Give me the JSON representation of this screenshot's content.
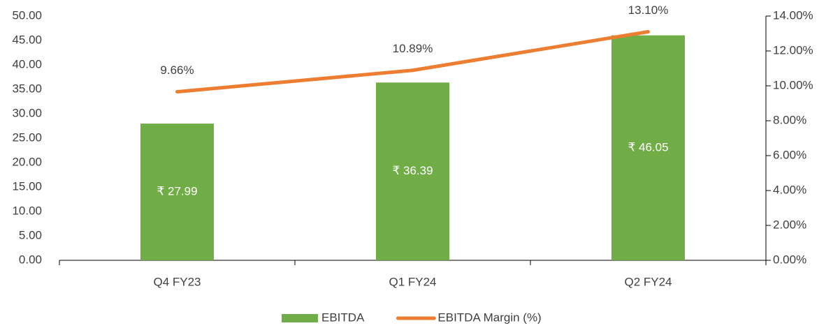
{
  "chart_data": {
    "type": "bar",
    "categories": [
      "Q4 FY23",
      "Q1 FY24",
      "Q2 FY24"
    ],
    "series": [
      {
        "name": "EBITDA",
        "type": "bar",
        "color": "#70ad47",
        "values": [
          27.99,
          36.39,
          46.05
        ],
        "value_labels": [
          "₹ 27.99",
          "₹ 36.39",
          "₹ 46.05"
        ]
      },
      {
        "name": "EBITDA Margin (%)",
        "type": "line",
        "axis": "y2",
        "color": "#ed7d31",
        "values": [
          9.66,
          10.89,
          13.1
        ],
        "value_labels": [
          "9.66%",
          "10.89%",
          "13.10%"
        ]
      }
    ],
    "ylim": [
      0,
      50
    ],
    "yticks": [
      {
        "value": 0,
        "label": "0.00"
      },
      {
        "value": 5,
        "label": "5.00"
      },
      {
        "value": 10,
        "label": "10.00"
      },
      {
        "value": 15,
        "label": "15.00"
      },
      {
        "value": 20,
        "label": "20.00"
      },
      {
        "value": 25,
        "label": "25.00"
      },
      {
        "value": 30,
        "label": "30.00"
      },
      {
        "value": 35,
        "label": "35.00"
      },
      {
        "value": 40,
        "label": "40.00"
      },
      {
        "value": 45,
        "label": "45.00"
      },
      {
        "value": 50,
        "label": "50.00"
      }
    ],
    "y2lim": [
      0,
      14
    ],
    "y2ticks": [
      {
        "value": 0,
        "label": "0.00%"
      },
      {
        "value": 2,
        "label": "2.00%"
      },
      {
        "value": 4,
        "label": "4.00%"
      },
      {
        "value": 6,
        "label": "6.00%"
      },
      {
        "value": 8,
        "label": "8.00%"
      },
      {
        "value": 10,
        "label": "10.00%"
      },
      {
        "value": 12,
        "label": "12.00%"
      },
      {
        "value": 14,
        "label": "14.00%"
      }
    ],
    "grid": false,
    "legend": "bottom"
  }
}
